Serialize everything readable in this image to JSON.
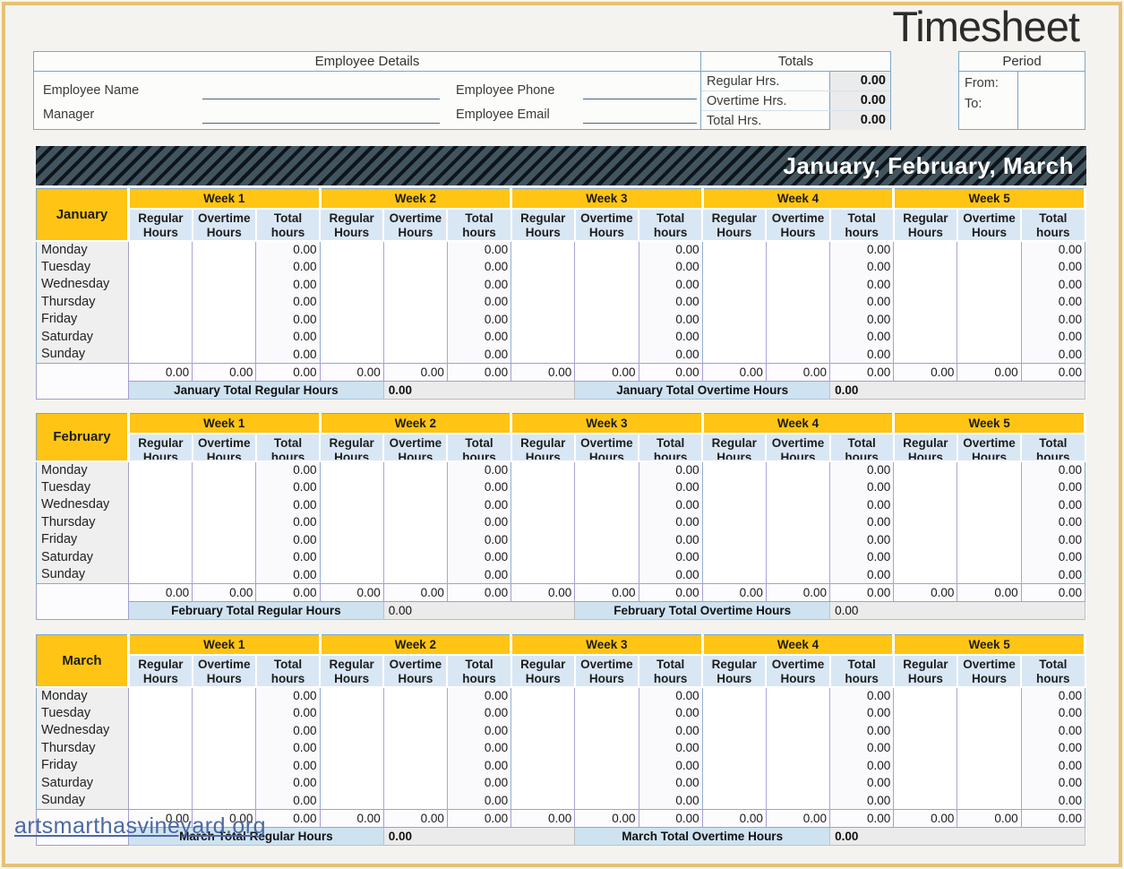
{
  "page": {
    "title": "Timesheet",
    "watermark": "artsmarthasvineyard.org"
  },
  "employee_details": {
    "header": "Employee Details",
    "fields": [
      {
        "label": "Employee Name",
        "value": ""
      },
      {
        "label": "Employee Phone",
        "value": ""
      },
      {
        "label": "Manager",
        "value": ""
      },
      {
        "label": "Employee Email",
        "value": ""
      }
    ]
  },
  "totals": {
    "header": "Totals",
    "rows": [
      {
        "label": "Regular Hrs.",
        "value": "0.00"
      },
      {
        "label": "Overtime Hrs.",
        "value": "0.00"
      },
      {
        "label": "Total Hrs.",
        "value": "0.00"
      }
    ]
  },
  "period": {
    "header": "Period",
    "from_label": "From:",
    "to_label": "To:",
    "from_value": "",
    "to_value": ""
  },
  "banner": {
    "title": "January, February, March"
  },
  "weeks": [
    "Week 1",
    "Week 2",
    "Week 3",
    "Week 4",
    "Week 5"
  ],
  "columns": {
    "regular": "Regular Hours",
    "overtime": "Overtime Hours",
    "total": "Total hours"
  },
  "days": [
    "Monday",
    "Tuesday",
    "Wednesday",
    "Thursday",
    "Friday",
    "Saturday",
    "Sunday"
  ],
  "colors": {
    "accent_yellow": "#ffc414",
    "header_blue": "#d9e7f4",
    "banner_slate": "#42555f",
    "grid_purple": "#a49ecf",
    "border_blue": "#7ba7c7"
  },
  "months": [
    {
      "name": "January",
      "rows": [
        {
          "day": "Monday",
          "week_totals": [
            "0.00",
            "0.00",
            "0.00",
            "0.00",
            "0.00"
          ]
        },
        {
          "day": "Tuesday",
          "week_totals": [
            "0.00",
            "0.00",
            "0.00",
            "0.00",
            "0.00"
          ]
        },
        {
          "day": "Wednesday",
          "week_totals": [
            "0.00",
            "0.00",
            "0.00",
            "0.00",
            "0.00"
          ]
        },
        {
          "day": "Thursday",
          "week_totals": [
            "0.00",
            "0.00",
            "0.00",
            "0.00",
            "0.00"
          ]
        },
        {
          "day": "Friday",
          "week_totals": [
            "0.00",
            "0.00",
            "0.00",
            "0.00",
            "0.00"
          ]
        },
        {
          "day": "Saturday",
          "week_totals": [
            "0.00",
            "0.00",
            "0.00",
            "0.00",
            "0.00"
          ]
        },
        {
          "day": "Sunday",
          "week_totals": [
            "0.00",
            "0.00",
            "0.00",
            "0.00",
            "0.00"
          ]
        }
      ],
      "sum_row": [
        "0.00",
        "0.00",
        "0.00",
        "0.00",
        "0.00",
        "0.00",
        "0.00",
        "0.00",
        "0.00",
        "0.00",
        "0.00",
        "0.00",
        "0.00",
        "0.00",
        "0.00"
      ],
      "footer": {
        "regular_label": "January Total Regular Hours",
        "regular_value": "0.00",
        "overtime_label": "January Total Overtime Hours",
        "overtime_value": "0.00"
      }
    },
    {
      "name": "February",
      "rows": [
        {
          "day": "Monday",
          "week_totals": [
            "0.00",
            "0.00",
            "0.00",
            "0.00",
            "0.00"
          ]
        },
        {
          "day": "Tuesday",
          "week_totals": [
            "0.00",
            "0.00",
            "0.00",
            "0.00",
            "0.00"
          ]
        },
        {
          "day": "Wednesday",
          "week_totals": [
            "0.00",
            "0.00",
            "0.00",
            "0.00",
            "0.00"
          ]
        },
        {
          "day": "Thursday",
          "week_totals": [
            "0.00",
            "0.00",
            "0.00",
            "0.00",
            "0.00"
          ]
        },
        {
          "day": "Friday",
          "week_totals": [
            "0.00",
            "0.00",
            "0.00",
            "0.00",
            "0.00"
          ]
        },
        {
          "day": "Saturday",
          "week_totals": [
            "0.00",
            "0.00",
            "0.00",
            "0.00",
            "0.00"
          ]
        },
        {
          "day": "Sunday",
          "week_totals": [
            "0.00",
            "0.00",
            "0.00",
            "0.00",
            "0.00"
          ]
        }
      ],
      "sum_row": [
        "0.00",
        "0.00",
        "0.00",
        "0.00",
        "0.00",
        "0.00",
        "0.00",
        "0.00",
        "0.00",
        "0.00",
        "0.00",
        "0.00",
        "0.00",
        "0.00",
        "0.00"
      ],
      "footer": {
        "regular_label": "February Total Regular Hours",
        "regular_value": "0.00",
        "overtime_label": "February Total Overtime Hours",
        "overtime_value": "0.00"
      }
    },
    {
      "name": "March",
      "rows": [
        {
          "day": "Monday",
          "week_totals": [
            "0.00",
            "0.00",
            "0.00",
            "0.00",
            "0.00"
          ]
        },
        {
          "day": "Tuesday",
          "week_totals": [
            "0.00",
            "0.00",
            "0.00",
            "0.00",
            "0.00"
          ]
        },
        {
          "day": "Wednesday",
          "week_totals": [
            "0.00",
            "0.00",
            "0.00",
            "0.00",
            "0.00"
          ]
        },
        {
          "day": "Thursday",
          "week_totals": [
            "0.00",
            "0.00",
            "0.00",
            "0.00",
            "0.00"
          ]
        },
        {
          "day": "Friday",
          "week_totals": [
            "0.00",
            "0.00",
            "0.00",
            "0.00",
            "0.00"
          ]
        },
        {
          "day": "Saturday",
          "week_totals": [
            "0.00",
            "0.00",
            "0.00",
            "0.00",
            "0.00"
          ]
        },
        {
          "day": "Sunday",
          "week_totals": [
            "0.00",
            "0.00",
            "0.00",
            "0.00",
            "0.00"
          ]
        }
      ],
      "sum_row": [
        "0.00",
        "0.00",
        "0.00",
        "0.00",
        "0.00",
        "0.00",
        "0.00",
        "0.00",
        "0.00",
        "0.00",
        "0.00",
        "0.00",
        "0.00",
        "0.00",
        "0.00"
      ],
      "footer": {
        "regular_label": "March Total Regular Hours",
        "regular_value": "0.00",
        "overtime_label": "March Total Overtime Hours",
        "overtime_value": "0.00"
      }
    }
  ]
}
